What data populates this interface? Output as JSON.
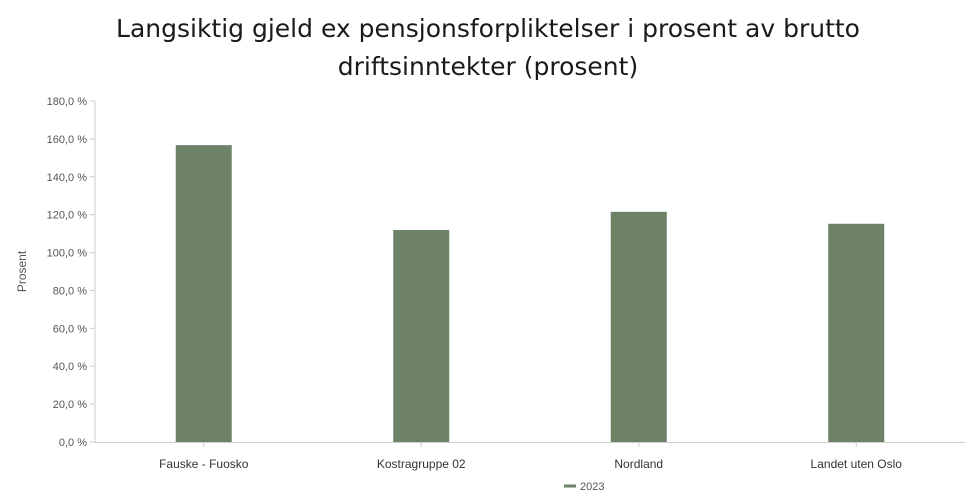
{
  "chart_data": {
    "type": "bar",
    "title_lines": [
      "Langsiktig gjeld ex pensjonsforpliktelser i prosent av brutto",
      "driftsinntekter (prosent)"
    ],
    "ylabel": "Prosent",
    "xlabel": "",
    "ylim": [
      0,
      180
    ],
    "yticks": [
      0,
      20,
      40,
      60,
      80,
      100,
      120,
      140,
      160,
      180
    ],
    "ytick_labels": [
      "0,0 %",
      "20,0 %",
      "40,0 %",
      "60,0 %",
      "80,0 %",
      "100,0 %",
      "120,0 %",
      "140,0 %",
      "160,0 %",
      "180,0 %"
    ],
    "categories": [
      "Fauske - Fuosko",
      "Kostragruppe 02",
      "Nordland",
      "Landet uten Oslo"
    ],
    "series": [
      {
        "name": "2023",
        "values": [
          156.7,
          111.9,
          121.5,
          115.2
        ],
        "color": "#6e8268"
      }
    ],
    "grid": false,
    "legend_position": "bottom-center"
  }
}
